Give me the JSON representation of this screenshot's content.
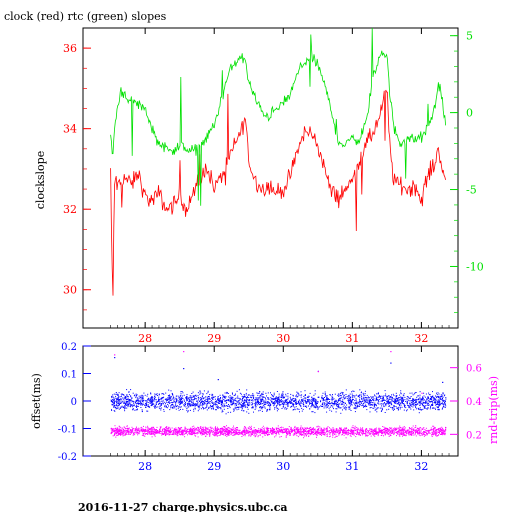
{
  "footer": "2016-11-27 charge.physics.ubc.ca",
  "colors": {
    "red": "#ff0000",
    "green": "#00e000",
    "blue": "#0000ff",
    "magenta": "#ff00ff",
    "axis": "#000000"
  },
  "chart_data": [
    {
      "type": "line",
      "title": "clock (red) rtc (green) slopes",
      "xlabel": "",
      "ylabel": "clockslope",
      "y2label": "",
      "xlim": [
        27.1,
        32.53
      ],
      "ylim": [
        29.05,
        36.5
      ],
      "y2lim": [
        -14.0,
        5.5
      ],
      "xticks": [
        "28",
        "29",
        "30",
        "31",
        "32"
      ],
      "xtick_values": [
        28,
        29,
        30,
        31,
        32
      ],
      "yticks": [
        "30",
        "32",
        "34",
        "36"
      ],
      "ytick_values": [
        30,
        32,
        34,
        36
      ],
      "y2ticks": [
        "5",
        "0",
        "-5",
        "-10"
      ],
      "y2tick_values": [
        5,
        0,
        -5,
        -10
      ],
      "grid": false,
      "series": [
        {
          "name": "clock",
          "axis": "left",
          "color": "#ff0000",
          "x": [
            27.5,
            27.52,
            27.54,
            27.55,
            27.58,
            27.6,
            27.65,
            27.7,
            27.8,
            27.9,
            28.0,
            28.1,
            28.2,
            28.3,
            28.4,
            28.5,
            28.55,
            28.6,
            28.7,
            28.8,
            28.9,
            29.0,
            29.1,
            29.2,
            29.3,
            29.4,
            29.45,
            29.5,
            29.6,
            29.7,
            29.8,
            29.9,
            30.0,
            30.1,
            30.2,
            30.3,
            30.4,
            30.5,
            30.6,
            30.7,
            30.8,
            30.9,
            31.0,
            31.1,
            31.2,
            31.3,
            31.4,
            31.45,
            31.5,
            31.55,
            31.6,
            31.7,
            31.8,
            31.9,
            32.0,
            32.1,
            32.2,
            32.25,
            32.3,
            32.35
          ],
          "values": [
            33.0,
            30.5,
            29.6,
            32.6,
            32.8,
            32.5,
            32.7,
            32.8,
            32.6,
            32.9,
            32.3,
            32.2,
            32.4,
            32.0,
            32.1,
            32.3,
            32.2,
            32.0,
            32.4,
            32.7,
            33.1,
            32.5,
            32.8,
            33.2,
            33.6,
            34.0,
            34.3,
            33.2,
            32.7,
            32.5,
            32.6,
            32.4,
            32.5,
            32.8,
            33.4,
            33.9,
            33.9,
            33.6,
            33.0,
            32.4,
            32.3,
            32.5,
            32.7,
            33.2,
            33.6,
            33.9,
            34.3,
            34.7,
            34.9,
            33.5,
            32.7,
            32.6,
            32.5,
            32.6,
            32.2,
            32.9,
            33.1,
            33.6,
            33.0,
            32.6
          ]
        },
        {
          "name": "rtc",
          "axis": "right",
          "color": "#00e000",
          "x": [
            27.5,
            27.53,
            27.56,
            27.6,
            27.65,
            27.7,
            27.8,
            27.9,
            28.0,
            28.1,
            28.2,
            28.3,
            28.4,
            28.5,
            28.6,
            28.7,
            28.8,
            28.9,
            29.0,
            29.1,
            29.2,
            29.3,
            29.4,
            29.45,
            29.5,
            29.6,
            29.7,
            29.8,
            29.9,
            30.0,
            30.1,
            30.2,
            30.3,
            30.4,
            30.5,
            30.6,
            30.7,
            30.8,
            30.9,
            31.0,
            31.1,
            31.2,
            31.3,
            31.4,
            31.45,
            31.5,
            31.55,
            31.6,
            31.7,
            31.8,
            31.9,
            32.0,
            32.1,
            32.2,
            32.25,
            32.3,
            32.35
          ],
          "values": [
            -1.2,
            -3.0,
            -0.8,
            0.3,
            1.5,
            1.2,
            0.7,
            0.6,
            0.2,
            -1.0,
            -2.0,
            -2.3,
            -2.4,
            -2.2,
            -2.4,
            -2.5,
            -2.1,
            -1.6,
            -0.8,
            0.8,
            2.4,
            3.3,
            3.6,
            3.3,
            2.0,
            0.8,
            0.0,
            -0.2,
            0.2,
            0.6,
            1.2,
            2.4,
            3.3,
            3.7,
            3.1,
            1.8,
            0.0,
            -1.8,
            -2.2,
            -1.6,
            -1.8,
            -0.6,
            2.2,
            3.8,
            4.0,
            3.6,
            1.0,
            -1.0,
            -2.0,
            -1.6,
            -1.8,
            -1.6,
            -1.0,
            0.4,
            2.0,
            1.0,
            -1.0
          ]
        }
      ]
    },
    {
      "type": "scatter",
      "title": "",
      "xlabel": "",
      "ylabel": "offset(ms)",
      "y2label": "rnd-trip(ms)",
      "xlim": [
        27.1,
        32.53
      ],
      "ylim": [
        -0.2,
        0.2
      ],
      "y2lim": [
        0.07,
        0.73
      ],
      "xticks": [
        "28",
        "29",
        "30",
        "31",
        "32"
      ],
      "xtick_values": [
        28,
        29,
        30,
        31,
        32
      ],
      "yticks": [
        "0.2",
        "0.1",
        "0",
        "-0.1",
        "-0.2"
      ],
      "ytick_values": [
        0.2,
        0.1,
        0,
        -0.1,
        -0.2
      ],
      "y2ticks": [
        "0.6",
        "0.4",
        "0.2"
      ],
      "y2tick_values": [
        0.6,
        0.4,
        0.2
      ],
      "grid": false,
      "series": [
        {
          "name": "offset",
          "axis": "left",
          "color": "#0000ff",
          "x_range": [
            27.5,
            32.35
          ],
          "center": 0.0,
          "spread": 0.03,
          "outliers_x": [
            27.55,
            28.55,
            29.05,
            30.5,
            31.55,
            32.3
          ],
          "outliers_y": [
            0.16,
            0.12,
            0.08,
            0.11,
            0.14,
            0.07
          ]
        },
        {
          "name": "rnd-trip",
          "axis": "right",
          "color": "#ff00ff",
          "x_range": [
            27.5,
            32.35
          ],
          "center": 0.22,
          "spread": 0.025,
          "outliers_x": [
            27.55,
            28.55,
            30.5,
            31.55,
            32.0
          ],
          "outliers_y": [
            0.68,
            0.7,
            0.58,
            0.7,
            0.45
          ]
        }
      ]
    }
  ]
}
